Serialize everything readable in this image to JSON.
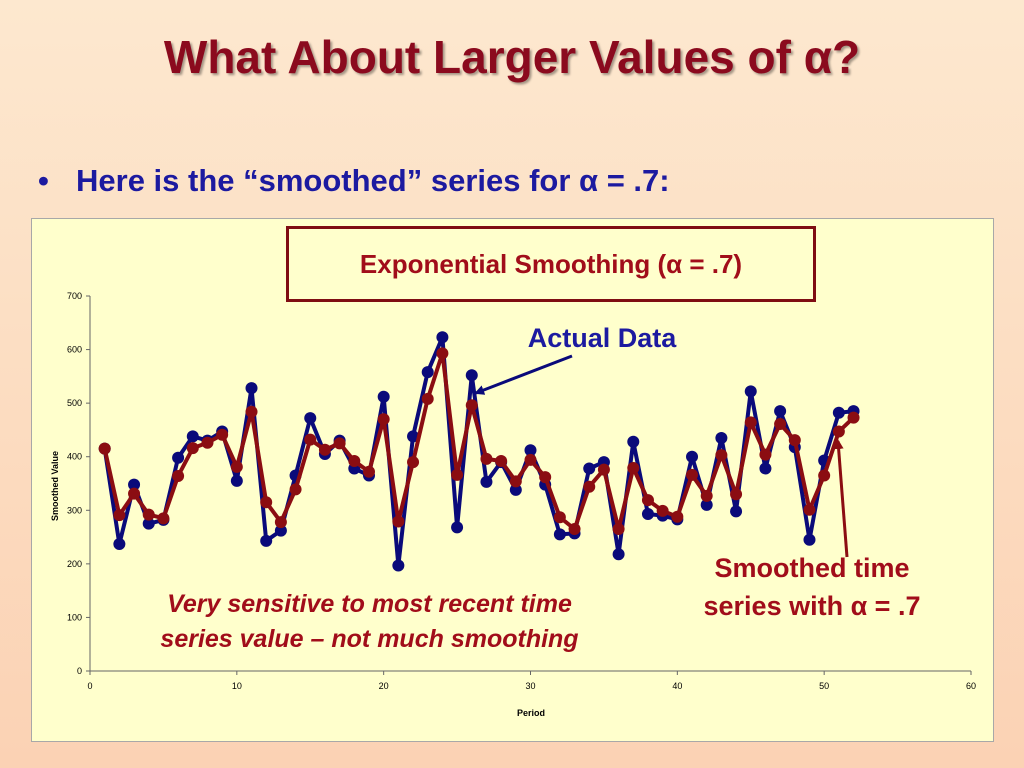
{
  "slide": {
    "title": "What About Larger Values of α?",
    "bullet": "Here is the “smoothed” series for α = .7:",
    "bullet_symbol": "•"
  },
  "colors": {
    "title": "#8b0a1e",
    "bullet": "#1c1aa0",
    "actual_series": "#0a0a7a",
    "smoothed_series": "#8b0d12",
    "panel": "#ffffcc"
  },
  "annotations": {
    "actual": "Actual Data",
    "smoothed_line1": "Smoothed time",
    "smoothed_line2": "series with α = .7",
    "note_line1": "Very sensitive to most recent time",
    "note_line2": "series value – not much smoothing"
  },
  "chart_data": {
    "type": "line",
    "title": "Exponential Smoothing (α = .7)",
    "xlabel": "Period",
    "ylabel": "Smoothed Value",
    "xlim": [
      0,
      60
    ],
    "ylim": [
      0,
      700
    ],
    "x_ticks": [
      0,
      10,
      20,
      30,
      40,
      50,
      60
    ],
    "y_ticks": [
      0,
      100,
      200,
      300,
      400,
      500,
      600,
      700
    ],
    "grid": false,
    "x": [
      1,
      2,
      3,
      4,
      5,
      6,
      7,
      8,
      9,
      10,
      11,
      12,
      13,
      14,
      15,
      16,
      17,
      18,
      19,
      20,
      21,
      22,
      23,
      24,
      25,
      26,
      27,
      28,
      29,
      30,
      31,
      32,
      33,
      34,
      35,
      36,
      37,
      38,
      39,
      40,
      41,
      42,
      43,
      44,
      45,
      46,
      47,
      48,
      49,
      50,
      51,
      52
    ],
    "series": [
      {
        "name": "Actual Data",
        "values": [
          415,
          237,
          348,
          275,
          282,
          398,
          438,
          430,
          447,
          355,
          528,
          243,
          262,
          365,
          472,
          405,
          430,
          378,
          365,
          512,
          197,
          438,
          558,
          623,
          268,
          552,
          353,
          390,
          338,
          412,
          348,
          255,
          257,
          378,
          390,
          218,
          428,
          293,
          290,
          283,
          400,
          310,
          435,
          298,
          522,
          378,
          485,
          418,
          245,
          393,
          482,
          485
        ]
      },
      {
        "name": "Smoothed time series with α = .7",
        "values": [
          415,
          291,
          331,
          292,
          285,
          364,
          416,
          426,
          441,
          381,
          484,
          315,
          278,
          339,
          432,
          413,
          425,
          392,
          372,
          470,
          279,
          390,
          508,
          593,
          366,
          496,
          396,
          392,
          354,
          394,
          362,
          287,
          265,
          344,
          376,
          265,
          379,
          319,
          299,
          288,
          366,
          327,
          403,
          330,
          464,
          404,
          461,
          431,
          301,
          365,
          447,
          473
        ]
      }
    ]
  }
}
